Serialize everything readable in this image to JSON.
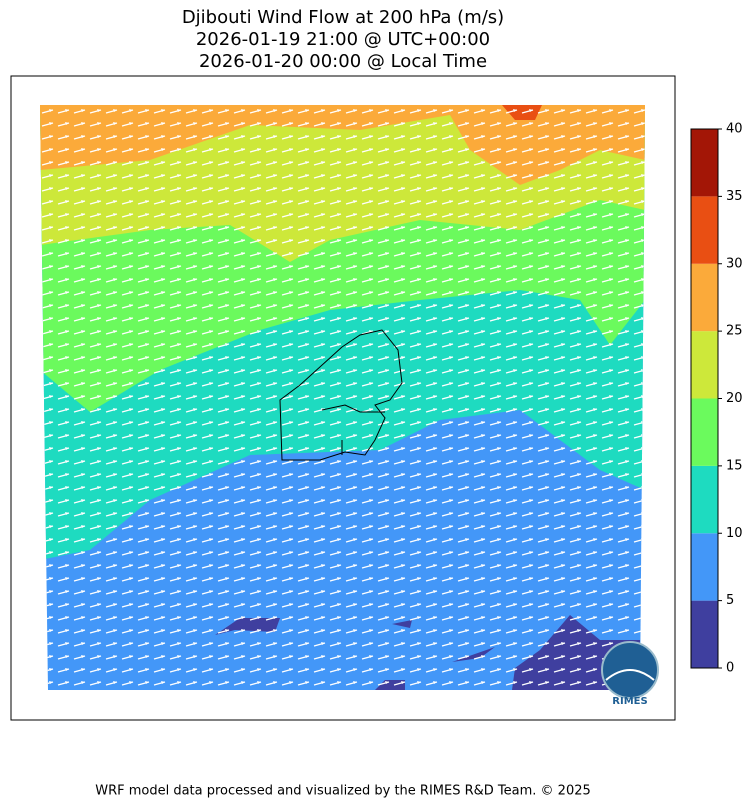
{
  "title": [
    "Djibouti Wind Flow at 200 hPa (m/s)",
    "2026-01-19 21:00 @ UTC+00:00",
    "2026-01-20 00:00 @ Local Time"
  ],
  "colorbar": {
    "ticks": [
      0,
      5,
      10,
      15,
      20,
      25,
      30,
      35,
      40
    ],
    "colors": [
      "#3f3f9f",
      "#4397f8",
      "#1edbc0",
      "#6bfa5d",
      "#cde83a",
      "#fbaa3a",
      "#e94f13",
      "#a31606"
    ]
  },
  "logo": "RIMES",
  "footer": "WRF model data processed and visualized by the RIMES R&D Team. © 2025"
}
